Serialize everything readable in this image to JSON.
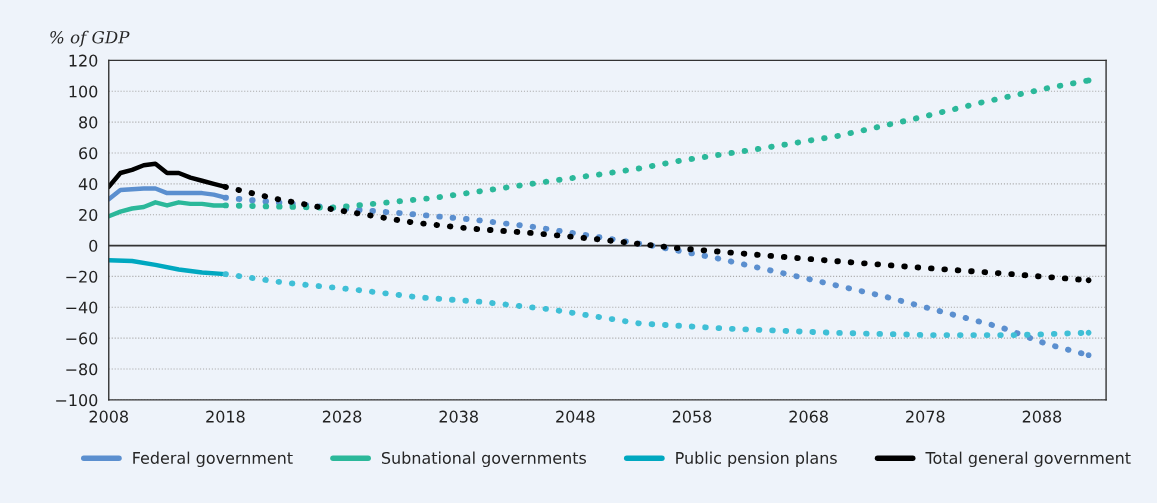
{
  "chart_data": {
    "type": "line",
    "ylabel": "% of GDP",
    "xlim": [
      2008,
      2093.5
    ],
    "xticks": [
      2008,
      2018,
      2028,
      2038,
      2048,
      2058,
      2068,
      2078,
      2088
    ],
    "ylim": [
      -100,
      120
    ],
    "yticks": [
      -100,
      -80,
      -60,
      -40,
      -20,
      0,
      20,
      40,
      60,
      80,
      100,
      120
    ],
    "grid": "y",
    "legend": "bottom",
    "ref_lines": [
      {
        "axis": "y",
        "value": 0,
        "color": "#333333",
        "line_style": "solid"
      }
    ],
    "series": [
      {
        "name": "Federal government",
        "color": "#5b8fcf",
        "line_style": "solid",
        "x": [
          2008,
          2009,
          2010,
          2011,
          2012,
          2013,
          2014,
          2015,
          2016,
          2017,
          2018
        ],
        "values": [
          30,
          36,
          36.5,
          37,
          37,
          34,
          34,
          34,
          34,
          33,
          31
        ]
      },
      {
        "name": "Subnational governments",
        "color": "#2bb89a",
        "line_style": "solid",
        "x": [
          2008,
          2009,
          2010,
          2011,
          2012,
          2013,
          2014,
          2015,
          2016,
          2017,
          2018
        ],
        "values": [
          19,
          22,
          24,
          25,
          28,
          26,
          28,
          27,
          27,
          26,
          26
        ]
      },
      {
        "name": "Public pension plans",
        "color": "#00a8c0",
        "line_style": "solid",
        "x": [
          2008,
          2010,
          2012,
          2014,
          2016,
          2018
        ],
        "values": [
          -9.5,
          -10,
          -12.5,
          -15.5,
          -17.5,
          -18.5
        ]
      },
      {
        "name": "Total general government",
        "color": "#000000",
        "line_style": "solid",
        "x": [
          2008,
          2009,
          2010,
          2011,
          2012,
          2013,
          2014,
          2015,
          2016,
          2017,
          2018
        ],
        "values": [
          38,
          47,
          49,
          52,
          53,
          47,
          47,
          44,
          42,
          40,
          38
        ]
      },
      {
        "color": "#5b8fcf",
        "line_style": "dotted",
        "x": [
          2018,
          2028,
          2033,
          2039,
          2044.5,
          2050,
          2054.5,
          2060,
          2067,
          2074.5,
          2080,
          2084.5,
          2088.5,
          2092
        ],
        "values": [
          31,
          24,
          21,
          17,
          12,
          5.5,
          0,
          -8,
          -20,
          -33,
          -44,
          -53,
          -64,
          -71
        ]
      },
      {
        "color": "#2bb89a",
        "line_style": "dotted",
        "x": [
          2018,
          2027,
          2030,
          2036,
          2041.5,
          2047,
          2050,
          2053.5,
          2057,
          2064,
          2070.5,
          2077,
          2083,
          2088.5,
          2092
        ],
        "values": [
          26,
          24.5,
          26.5,
          31,
          37,
          43,
          46,
          50,
          55,
          63,
          71,
          82,
          93,
          102,
          107
        ]
      },
      {
        "color": "#3fbfd6",
        "line_style": "dotted",
        "x": [
          2018,
          2023,
          2029,
          2034.5,
          2040,
          2046,
          2053.5,
          2061.5,
          2070,
          2078.5,
          2086,
          2092
        ],
        "values": [
          -18.5,
          -24,
          -28.5,
          -33.5,
          -36.5,
          -41.5,
          -50.5,
          -54,
          -56.5,
          -58,
          -58,
          -56.5
        ]
      },
      {
        "color": "#000000",
        "line_style": "dotted",
        "x": [
          2018,
          2022.5,
          2026,
          2030,
          2034,
          2039,
          2044.5,
          2050,
          2056.5,
          2062,
          2068.5,
          2077,
          2084.5,
          2092
        ],
        "values": [
          38,
          30,
          25,
          20,
          15,
          11,
          8,
          4,
          -1.5,
          -5,
          -9,
          -14,
          -18,
          -22.5
        ]
      }
    ]
  }
}
